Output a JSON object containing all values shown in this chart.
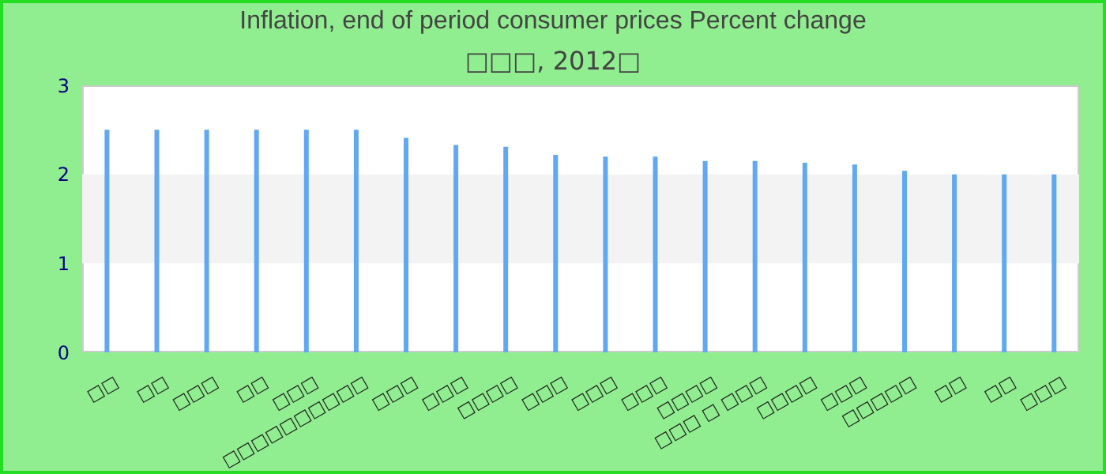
{
  "chart_data": {
    "type": "bar",
    "title": "Inflation, end of period consumer prices  Percent change",
    "subtitle": "□□□, 2012□",
    "categories": [
      "□□",
      "□□",
      "□□□",
      "□□",
      "□□□",
      "□□□□□□□□□□",
      "□□□",
      "□□□",
      "□□□□",
      "□□□",
      "□□□",
      "□□□",
      "□□□□",
      "□□□ □ □□□",
      "□□□□",
      "□□□",
      "□□□□□",
      "□□",
      "□□",
      "□□□"
    ],
    "values": [
      2.5,
      2.5,
      2.5,
      2.5,
      2.5,
      2.5,
      2.41,
      2.33,
      2.31,
      2.22,
      2.2,
      2.2,
      2.15,
      2.15,
      2.13,
      2.11,
      2.04,
      2.0,
      2.0,
      2.0
    ],
    "color": "#61a8f2",
    "ylim": [
      0,
      3
    ],
    "yticks": [
      0,
      1,
      2,
      3
    ],
    "bands": [
      {
        "axis": "y",
        "from": 1,
        "to": 2,
        "color": "#f3f3f3"
      }
    ]
  }
}
